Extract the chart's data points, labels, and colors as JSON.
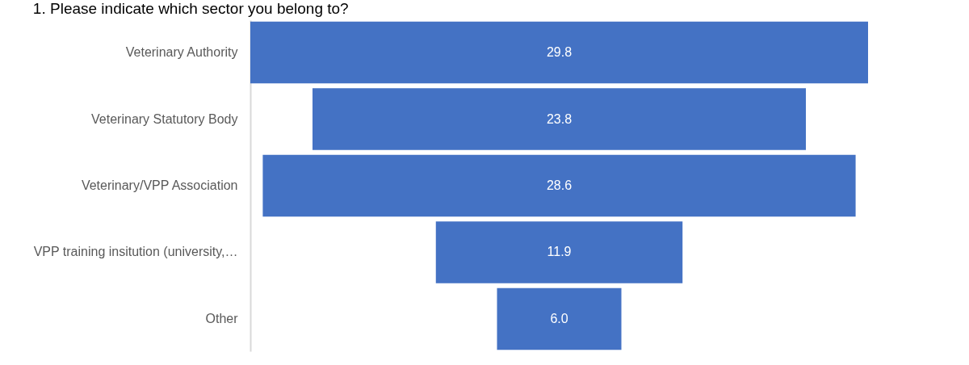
{
  "chart_data": {
    "type": "other",
    "title": "1. Please indicate which sector you belong to?",
    "categories": [
      "Veterinary Authority",
      "Veterinary Statutory Body",
      "Veterinary/VPP Association",
      "VPP training insitution (university,…",
      "Other"
    ],
    "values": [
      29.8,
      23.8,
      28.6,
      11.9,
      6.0
    ],
    "value_labels": [
      "29.8",
      "23.8",
      "28.6",
      "11.9",
      "6.0"
    ],
    "color": "#4472c4"
  }
}
